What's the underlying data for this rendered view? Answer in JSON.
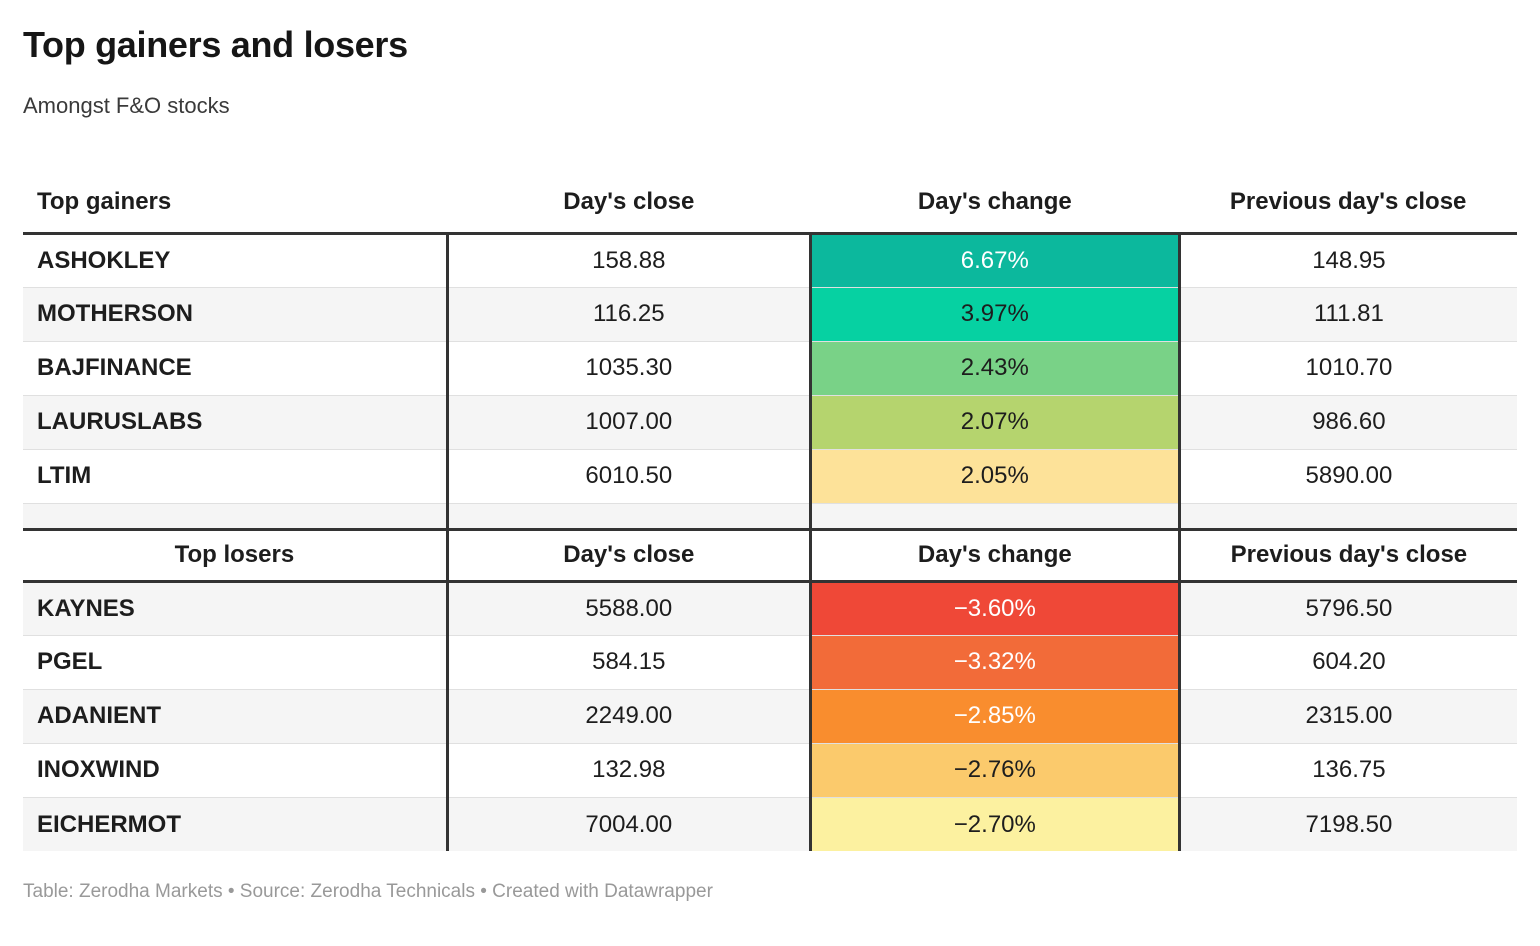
{
  "page": {
    "title": "Top gainers and losers",
    "subtitle": "Amongst F&O stocks",
    "footer": "Table: Zerodha Markets • Source: Zerodha Technicals • Created with Datawrapper"
  },
  "colors": {
    "thick_rule": "#333333",
    "column_divider": "#333333",
    "row_stripe": "#f5f5f5",
    "row_separator": "#e0e0e0",
    "gain_scale_top": "#0cb89d",
    "loss_scale_top": "#ef4837",
    "credits_text": "#999999"
  },
  "chart_data": [
    {
      "type": "table",
      "title": "Top gainers",
      "columns": [
        "Top gainers",
        "Day's close",
        "Day's change",
        "Previous day's close"
      ],
      "rows": [
        {
          "name": "ASHOKLEY",
          "days_close": "158.88",
          "days_change": "6.67%",
          "prev_close": "148.95",
          "change_bg": "#0cb89d",
          "change_text": "#ffffff"
        },
        {
          "name": "MOTHERSON",
          "days_close": "116.25",
          "days_change": "3.97%",
          "prev_close": "111.81",
          "change_bg": "#06d1a2",
          "change_text": "#1d1d1d"
        },
        {
          "name": "BAJFINANCE",
          "days_close": "1035.30",
          "days_change": "2.43%",
          "prev_close": "1010.70",
          "change_bg": "#79d287",
          "change_text": "#1d1d1d"
        },
        {
          "name": "LAURUSLABS",
          "days_close": "1007.00",
          "days_change": "2.07%",
          "prev_close": "986.60",
          "change_bg": "#b5d46e",
          "change_text": "#1d1d1d"
        },
        {
          "name": "LTIM",
          "days_close": "6010.50",
          "days_change": "2.05%",
          "prev_close": "5890.00",
          "change_bg": "#fde299",
          "change_text": "#1d1d1d"
        }
      ]
    },
    {
      "type": "table",
      "title": "Top losers",
      "columns": [
        "Top losers",
        "Day's close",
        "Day's change",
        "Previous day's close"
      ],
      "rows": [
        {
          "name": "KAYNES",
          "days_close": "5588.00",
          "days_change": "−3.60%",
          "prev_close": "5796.50",
          "change_bg": "#ef4837",
          "change_text": "#ffffff"
        },
        {
          "name": "PGEL",
          "days_close": "584.15",
          "days_change": "−3.32%",
          "prev_close": "604.20",
          "change_bg": "#f26b39",
          "change_text": "#ffffff"
        },
        {
          "name": "ADANIENT",
          "days_close": "2249.00",
          "days_change": "−2.85%",
          "prev_close": "2315.00",
          "change_bg": "#f98d2e",
          "change_text": "#ffffff"
        },
        {
          "name": "INOXWIND",
          "days_close": "132.98",
          "days_change": "−2.76%",
          "prev_close": "136.75",
          "change_bg": "#fbca6c",
          "change_text": "#1d1d1d"
        },
        {
          "name": "EICHERMOT",
          "days_close": "7004.00",
          "days_change": "−2.70%",
          "prev_close": "7198.50",
          "change_bg": "#fcf1a0",
          "change_text": "#1d1d1d"
        }
      ]
    }
  ]
}
